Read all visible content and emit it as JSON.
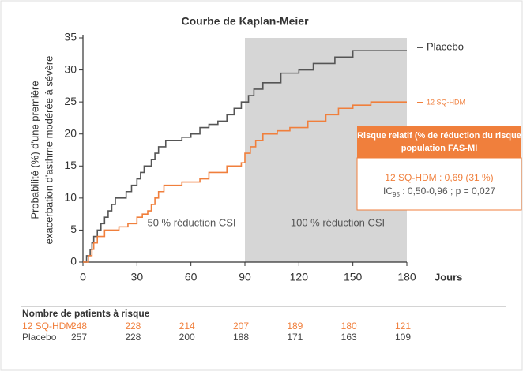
{
  "chart_data": {
    "type": "step",
    "title": "Courbe de Kaplan-Meier",
    "ylabel": [
      "Probabilité (%) d'une première",
      "exacerbation d'asthme modérée à sévère"
    ],
    "xlabel": "Jours",
    "xlim": [
      0,
      180
    ],
    "ylim": [
      0,
      35
    ],
    "xticks": [
      0,
      30,
      60,
      90,
      120,
      150,
      180
    ],
    "yticks": [
      0,
      5,
      10,
      15,
      20,
      25,
      30,
      35
    ],
    "shaded_xrange": [
      90,
      180
    ],
    "shade_color": "#d6d6d6",
    "annotations": [
      "50 % réduction CSI",
      "100 % réduction CSI"
    ],
    "series": [
      {
        "name": "Placebo",
        "color": "#555555",
        "x": [
          0,
          2,
          4,
          5,
          6,
          8,
          10,
          12,
          14,
          16,
          18,
          24,
          27,
          30,
          32,
          34,
          38,
          40,
          42,
          46,
          55,
          60,
          65,
          70,
          75,
          80,
          84,
          88,
          92,
          95,
          100,
          110,
          120,
          128,
          140,
          150,
          180
        ],
        "values": [
          0,
          1,
          2,
          3,
          4,
          5,
          6,
          7,
          8,
          9,
          10,
          11,
          12,
          13,
          14,
          15,
          16,
          17,
          18,
          19,
          19.5,
          20,
          21,
          21.5,
          22,
          23,
          24,
          25,
          26,
          27,
          28,
          29.5,
          30,
          31,
          32,
          33,
          33
        ]
      },
      {
        "name": "12 SQ-HDM",
        "color": "#f07f3c",
        "x": [
          0,
          3,
          5,
          6,
          8,
          12,
          20,
          25,
          30,
          33,
          36,
          38,
          40,
          42,
          45,
          55,
          65,
          70,
          80,
          88,
          90,
          93,
          96,
          100,
          108,
          115,
          125,
          135,
          142,
          150,
          160,
          180
        ],
        "values": [
          0,
          1,
          2,
          3,
          4,
          5,
          5.5,
          6,
          7,
          7.5,
          8,
          9,
          10,
          11,
          12,
          12.5,
          13,
          14,
          15,
          15.5,
          17,
          18,
          19,
          20,
          20.5,
          21,
          22,
          23,
          24,
          24.5,
          25,
          25
        ]
      }
    ],
    "info_box": {
      "header": [
        "Risque relatif (% de réduction du risque",
        "population FAS-MI"
      ],
      "line1": "12 SQ-HDM : 0,69 (31 %)",
      "line2": [
        "IC",
        "95",
        " : 0,50-0,96 ; p = 0,027"
      ]
    },
    "at_risk": {
      "title": "Nombre de patients à risque",
      "rows": [
        [
          "12 SQ-HDM",
          "248",
          "228",
          "214",
          "207",
          "189",
          "180",
          "121"
        ],
        [
          "Placebo",
          "257",
          "228",
          "200",
          "188",
          "171",
          "163",
          "109"
        ]
      ]
    }
  }
}
